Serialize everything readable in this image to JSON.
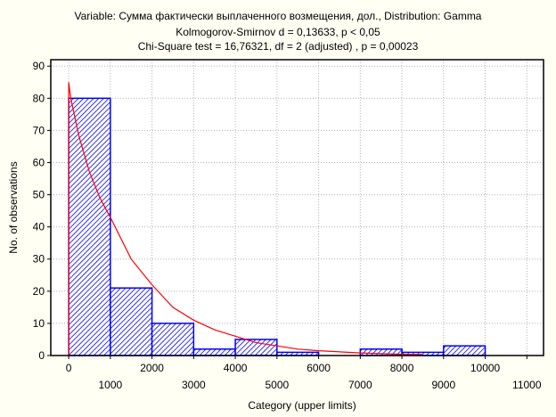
{
  "chart_data": {
    "type": "bar",
    "title": "Variable: Сумма фактически выплаченного возмещения, дол., Distribution: Gamma",
    "subtitle": [
      "Kolmogorov-Smirnov d = 0,13633, p < 0,05",
      "Chi-Square test = 16,76321, df = 2 (adjusted) , p = 0,00023"
    ],
    "xlabel": "Category (upper limits)",
    "ylabel": "No. of observations",
    "xlim": [
      -430,
      11400
    ],
    "ylim": [
      0,
      92
    ],
    "xticks": [
      0,
      1000,
      2000,
      3000,
      4000,
      5000,
      6000,
      7000,
      8000,
      9000,
      10000,
      11000
    ],
    "yticks": [
      0,
      10,
      20,
      30,
      40,
      50,
      60,
      70,
      80,
      90
    ],
    "grid": true,
    "bins": [
      {
        "from": 0,
        "to": 1000,
        "count": 80
      },
      {
        "from": 1000,
        "to": 2000,
        "count": 21
      },
      {
        "from": 2000,
        "to": 3000,
        "count": 10
      },
      {
        "from": 3000,
        "to": 4000,
        "count": 2
      },
      {
        "from": 4000,
        "to": 5000,
        "count": 5
      },
      {
        "from": 5000,
        "to": 6000,
        "count": 1
      },
      {
        "from": 6000,
        "to": 7000,
        "count": 0
      },
      {
        "from": 7000,
        "to": 8000,
        "count": 2
      },
      {
        "from": 8000,
        "to": 9000,
        "count": 1
      },
      {
        "from": 9000,
        "to": 10000,
        "count": 3
      }
    ],
    "fitted_curve": {
      "x": [
        0,
        0,
        50,
        250,
        500,
        750,
        1000,
        1500,
        2000,
        2500,
        3000,
        3500,
        4000,
        4500,
        5000,
        5500,
        6000,
        7000,
        8000,
        8500
      ],
      "y": [
        0,
        85,
        80,
        68,
        57,
        49,
        43,
        30,
        22,
        15,
        11,
        8,
        6,
        4,
        3,
        2,
        1.5,
        0.8,
        0.4,
        0.3
      ]
    },
    "colors": {
      "bar": "#0000ff",
      "curve": "#ff0000",
      "grid": "#b0b0b0",
      "background": "#fffff4"
    }
  }
}
